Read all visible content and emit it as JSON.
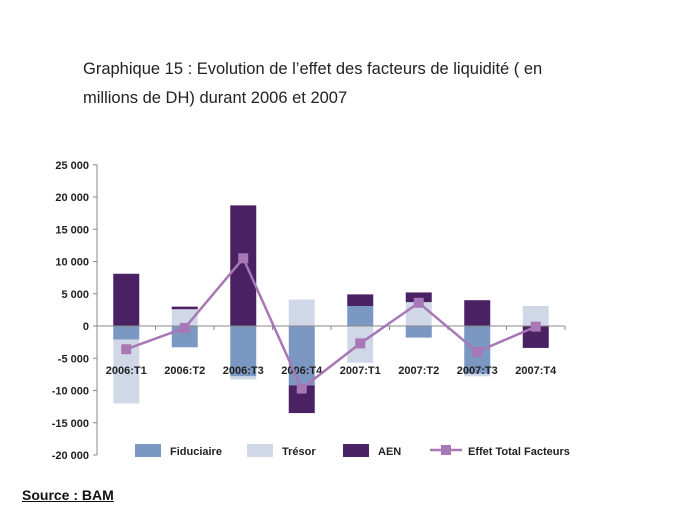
{
  "chart_data": {
    "type": "bar",
    "title_line1": "Graphique 15 : Evolution de l’effet des facteurs de liquidité ( en",
    "title_line2": "millions de DH) durant 2006 et 2007",
    "categories": [
      "2006:T1",
      "2006:T2",
      "2006:T3",
      "2006:T4",
      "2007:T1",
      "2007:T2",
      "2007:T3",
      "2007:T4"
    ],
    "ylim": [
      -20000,
      25000
    ],
    "yticks": [
      25000,
      20000,
      15000,
      10000,
      5000,
      0,
      -5000,
      -10000,
      -15000,
      -20000
    ],
    "ytick_labels": [
      "25 000",
      "20 000",
      "15 000",
      "10 000",
      "5 000",
      "0",
      "-5 000",
      "-10 000",
      "-15 000",
      "-20 000"
    ],
    "stacked": true,
    "series": [
      {
        "name": "Fiduciaire",
        "type": "bar",
        "color": "#7b98c3",
        "values": [
          -2100,
          -3300,
          -7800,
          -9200,
          3100,
          -1800,
          -7400,
          0
        ]
      },
      {
        "name": "Trésor",
        "type": "bar",
        "color": "#d0d8e8",
        "values": [
          -9900,
          2600,
          -500,
          4100,
          -5700,
          3700,
          -400,
          3100
        ]
      },
      {
        "name": "AEN",
        "type": "bar",
        "color": "#4a2163",
        "values": [
          8100,
          400,
          18700,
          -4300,
          1800,
          1500,
          4000,
          -3400
        ]
      },
      {
        "name": "Effet Total Facteurs",
        "type": "line",
        "color": "#a877b5",
        "values": [
          -3600,
          -300,
          10500,
          -9700,
          -2700,
          3600,
          -4000,
          -100
        ]
      }
    ],
    "legend": "bottom"
  },
  "source": "Source : BAM"
}
